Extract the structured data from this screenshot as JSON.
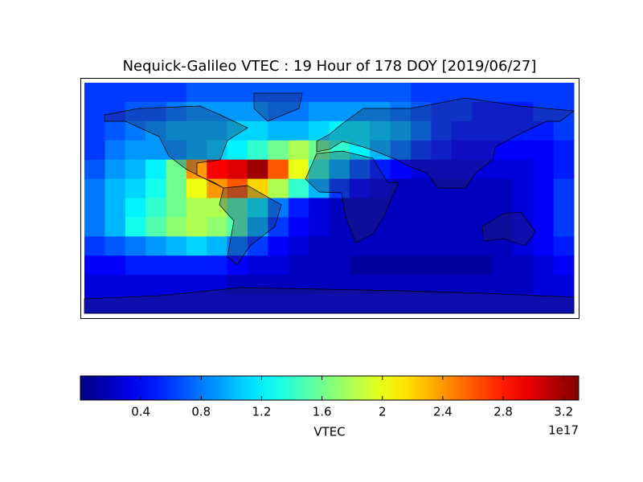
{
  "chart_data": {
    "type": "heatmap",
    "title": "Nequick-Galileo VTEC : 19 Hour of 178 DOY [2019/06/27]",
    "xlim": [
      -180,
      180
    ],
    "ylim": [
      90,
      -90
    ],
    "x": [
      -172.5,
      -157.5,
      -142.5,
      -127.5,
      -112.5,
      -97.5,
      -82.5,
      -67.5,
      -52.5,
      -37.5,
      -22.5,
      -7.5,
      7.5,
      22.5,
      37.5,
      52.5,
      67.5,
      82.5,
      97.5,
      112.5,
      127.5,
      142.5,
      157.5,
      172.5
    ],
    "y": [
      82.5,
      67.5,
      52.5,
      37.5,
      22.5,
      7.5,
      -7.5,
      -22.5,
      -37.5,
      -52.5,
      -67.5,
      -82.5
    ],
    "z": [
      [
        0.6,
        0.6,
        0.6,
        0.6,
        0.6,
        0.7,
        0.7,
        0.7,
        0.7,
        0.7,
        0.7,
        0.7,
        0.7,
        0.7,
        0.7,
        0.7,
        0.6,
        0.6,
        0.6,
        0.6,
        0.6,
        0.6,
        0.6,
        0.6
      ],
      [
        0.6,
        0.6,
        0.7,
        0.7,
        0.8,
        0.9,
        0.9,
        0.9,
        0.9,
        0.8,
        0.8,
        0.9,
        0.9,
        0.9,
        0.9,
        0.8,
        0.7,
        0.6,
        0.6,
        0.5,
        0.5,
        0.5,
        0.6,
        0.6
      ],
      [
        0.6,
        0.7,
        0.8,
        0.9,
        1.0,
        1.0,
        1.0,
        1.1,
        1.1,
        1.0,
        1.0,
        1.1,
        1.2,
        1.2,
        1.1,
        1.0,
        0.8,
        0.6,
        0.5,
        0.5,
        0.5,
        0.5,
        0.5,
        0.6
      ],
      [
        0.6,
        0.8,
        0.9,
        0.9,
        0.9,
        1.0,
        1.1,
        1.2,
        1.4,
        1.6,
        1.8,
        1.6,
        1.4,
        1.2,
        1.0,
        0.8,
        0.6,
        0.5,
        0.4,
        0.4,
        0.4,
        0.4,
        0.4,
        0.5
      ],
      [
        0.7,
        0.9,
        1.0,
        1.2,
        1.6,
        2.4,
        2.9,
        3.0,
        3.2,
        2.6,
        2.0,
        1.4,
        1.0,
        0.7,
        0.5,
        0.4,
        0.3,
        0.3,
        0.3,
        0.3,
        0.3,
        0.3,
        0.4,
        0.5
      ],
      [
        0.8,
        1.0,
        1.1,
        1.3,
        1.6,
        2.0,
        2.4,
        2.6,
        2.2,
        1.8,
        1.4,
        1.0,
        0.6,
        0.4,
        0.3,
        0.2,
        0.2,
        0.2,
        0.2,
        0.2,
        0.2,
        0.3,
        0.4,
        0.6
      ],
      [
        0.8,
        1.0,
        1.2,
        1.4,
        1.6,
        1.8,
        1.8,
        1.5,
        1.2,
        0.8,
        0.5,
        0.3,
        0.2,
        0.2,
        0.2,
        0.2,
        0.2,
        0.2,
        0.2,
        0.2,
        0.2,
        0.3,
        0.4,
        0.6
      ],
      [
        0.8,
        1.0,
        1.3,
        1.5,
        1.7,
        1.8,
        1.7,
        1.5,
        1.0,
        0.6,
        0.4,
        0.3,
        0.2,
        0.2,
        0.2,
        0.2,
        0.2,
        0.2,
        0.2,
        0.2,
        0.2,
        0.3,
        0.4,
        0.6
      ],
      [
        0.6,
        0.7,
        0.8,
        0.9,
        1.0,
        1.1,
        1.0,
        0.8,
        0.6,
        0.4,
        0.3,
        0.2,
        0.2,
        0.2,
        0.2,
        0.2,
        0.2,
        0.2,
        0.2,
        0.2,
        0.2,
        0.3,
        0.4,
        0.5
      ],
      [
        0.4,
        0.4,
        0.5,
        0.5,
        0.5,
        0.5,
        0.5,
        0.4,
        0.3,
        0.3,
        0.2,
        0.2,
        0.2,
        0.1,
        0.1,
        0.1,
        0.1,
        0.1,
        0.1,
        0.1,
        0.2,
        0.2,
        0.3,
        0.4
      ],
      [
        0.3,
        0.3,
        0.3,
        0.3,
        0.3,
        0.3,
        0.3,
        0.2,
        0.2,
        0.2,
        0.2,
        0.2,
        0.2,
        0.2,
        0.2,
        0.2,
        0.2,
        0.2,
        0.2,
        0.2,
        0.2,
        0.2,
        0.3,
        0.3
      ],
      [
        0.3,
        0.3,
        0.3,
        0.3,
        0.3,
        0.3,
        0.3,
        0.3,
        0.3,
        0.3,
        0.3,
        0.3,
        0.3,
        0.3,
        0.3,
        0.3,
        0.3,
        0.3,
        0.3,
        0.3,
        0.3,
        0.3,
        0.3,
        0.3
      ]
    ],
    "colormap": "jet",
    "clim": [
      0,
      3.3
    ],
    "cticks": [
      0.4,
      0.8,
      1.2,
      1.6,
      2.0,
      2.4,
      2.8,
      3.2
    ],
    "colorbar_label": "VTEC",
    "colorbar_offset": "1e17"
  }
}
